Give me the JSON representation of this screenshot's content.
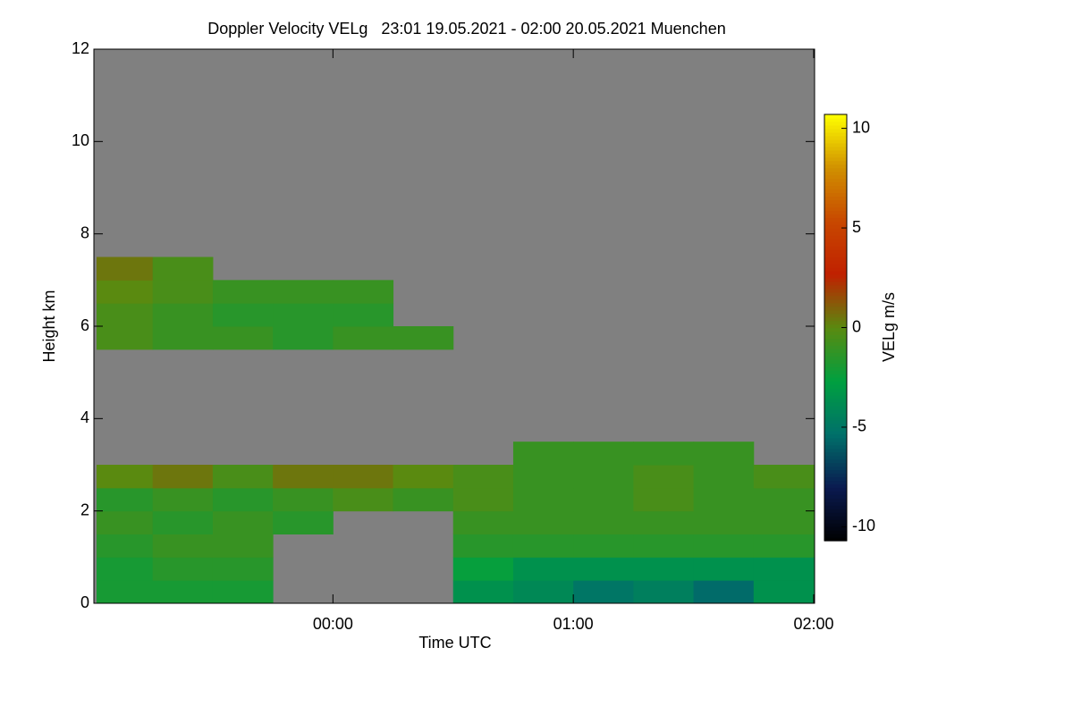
{
  "chart_data": {
    "type": "heatmap",
    "title": "Doppler Velocity VELg   23:01 19.05.2021 - 02:00 20.05.2021 Muenchen",
    "x_label": "Time UTC",
    "y_label": "Height km",
    "colorbar_label": "VELg m/s",
    "background": "#808080",
    "x_bins": [
      23.0167,
      23.25,
      23.5,
      23.75,
      24,
      24.25,
      24.5,
      24.75,
      25,
      25.25,
      25.5,
      25.75,
      26
    ],
    "y_bins": [
      0,
      0.5,
      1,
      1.5,
      2,
      2.5,
      3,
      3.5,
      4,
      4.5,
      5,
      5.5,
      6,
      6.5,
      7,
      7.5,
      8
    ],
    "z": [
      [
        -2,
        -2,
        -2,
        null,
        null,
        null,
        -3.5,
        -4,
        -5,
        -4.5,
        -5.5,
        -3.5
      ],
      [
        -2,
        -1.5,
        -1.5,
        null,
        null,
        null,
        -2.5,
        -3.5,
        -3.5,
        -3.5,
        -3.5,
        -3.5
      ],
      [
        -1.5,
        -1,
        -1,
        null,
        null,
        null,
        -1.5,
        -1.5,
        -1.5,
        -1.5,
        -1.5,
        -1.5
      ],
      [
        -1,
        -1.5,
        -1,
        -1.5,
        null,
        null,
        -1,
        -1,
        -1,
        -1,
        -1,
        -1
      ],
      [
        -1.5,
        -1,
        -1.5,
        -1,
        -0.5,
        -1,
        -0.5,
        -1,
        -1,
        -0.5,
        -1,
        -1
      ],
      [
        0,
        0.5,
        -0.5,
        0.5,
        0.5,
        0,
        -0.5,
        -1,
        -1,
        -0.5,
        -1,
        -0.5
      ],
      [
        null,
        null,
        null,
        null,
        null,
        null,
        null,
        -1,
        -1,
        -1,
        -1,
        null
      ],
      [
        null,
        null,
        null,
        null,
        null,
        null,
        null,
        null,
        null,
        null,
        null,
        null
      ],
      [
        null,
        null,
        null,
        null,
        null,
        null,
        null,
        null,
        null,
        null,
        null,
        null
      ],
      [
        null,
        null,
        null,
        null,
        null,
        null,
        null,
        null,
        null,
        null,
        null,
        null
      ],
      [
        null,
        null,
        null,
        null,
        null,
        null,
        null,
        null,
        null,
        null,
        null,
        null
      ],
      [
        -0.5,
        -1,
        -1,
        -1.5,
        -1,
        -1,
        null,
        null,
        null,
        null,
        null,
        null
      ],
      [
        -0.5,
        -1,
        -1.5,
        -1.5,
        -1.5,
        null,
        null,
        null,
        null,
        null,
        null,
        null
      ],
      [
        0,
        -0.5,
        -1,
        -1,
        -1,
        null,
        null,
        null,
        null,
        null,
        null,
        null
      ],
      [
        0.5,
        -0.5,
        null,
        null,
        null,
        null,
        null,
        null,
        null,
        null,
        null,
        null
      ],
      [
        null,
        null,
        null,
        null,
        null,
        null,
        null,
        null,
        null,
        null,
        null,
        null
      ]
    ],
    "xlim": [
      23.0167,
      26
    ],
    "xticks": [
      {
        "value": 24,
        "label": "00:00"
      },
      {
        "value": 25,
        "label": "01:00"
      },
      {
        "value": 26,
        "label": "02:00"
      }
    ],
    "ylim": [
      0,
      12
    ],
    "yticks": [
      0,
      2,
      4,
      6,
      8,
      10,
      12
    ],
    "zlim": [
      -10.7,
      10.7
    ],
    "zticks": [
      -10,
      -5,
      0,
      5,
      10
    ],
    "colorscale": [
      "#000000",
      "#0a1a50",
      "#00706a",
      "#00a040",
      "#5a8a10",
      "#c02000",
      "#c84800",
      "#d09000",
      "#ffff00"
    ]
  }
}
